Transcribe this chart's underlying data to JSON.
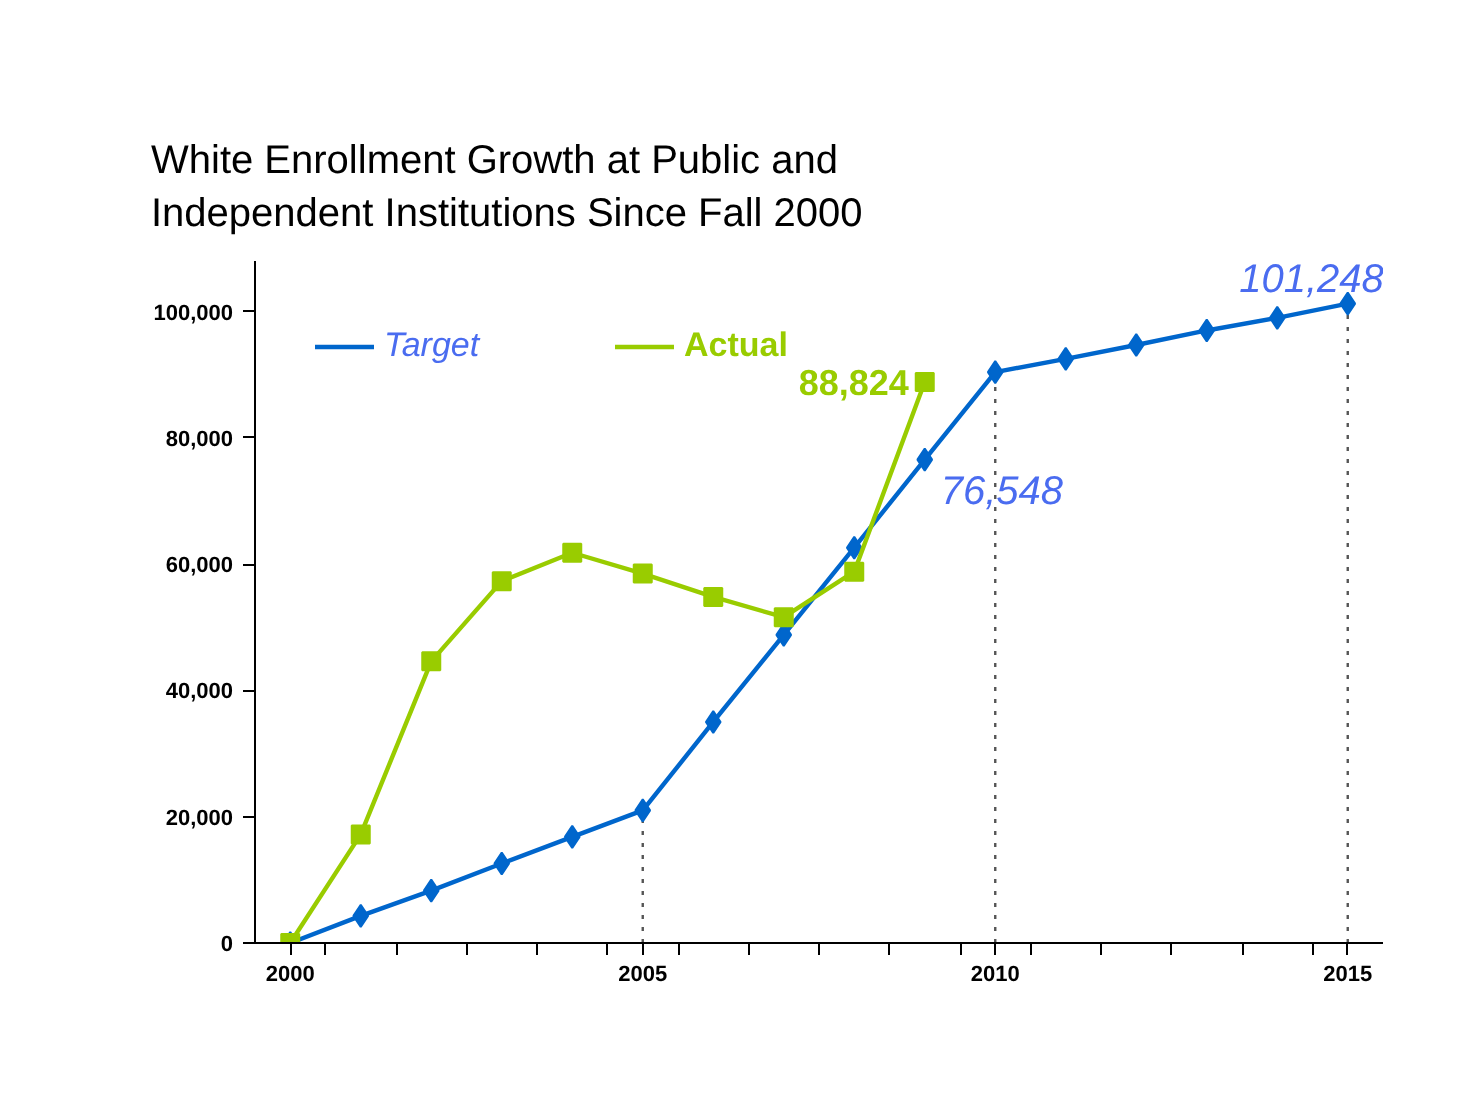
{
  "chart_data": {
    "type": "line",
    "title": "White Enrollment Growth at Public and\nIndependent Institutions Since Fall 2000",
    "x": [
      2000,
      2001,
      2002,
      2003,
      2004,
      2005,
      2006,
      2007,
      2008,
      2009,
      2010,
      2011,
      2012,
      2013,
      2014,
      2015
    ],
    "series": [
      {
        "name": "Target",
        "color": "#0066cc",
        "marker": "diamond",
        "values": [
          0,
          4300,
          8300,
          12600,
          16800,
          21000,
          35000,
          48800,
          62600,
          76548,
          90400,
          92500,
          94700,
          97000,
          99000,
          101248
        ],
        "value_labels": [
          null,
          null,
          null,
          null,
          null,
          null,
          null,
          null,
          null,
          "76,548",
          null,
          null,
          null,
          null,
          null,
          "101,248"
        ]
      },
      {
        "name": "Actual",
        "color": "#99cc00",
        "marker": "square",
        "x": [
          2000,
          2001,
          2002,
          2003,
          2004,
          2005,
          2006,
          2007,
          2008,
          2009
        ],
        "values": [
          0,
          17200,
          44600,
          57300,
          61800,
          58500,
          54800,
          51600,
          58800,
          88824
        ],
        "value_labels": [
          null,
          null,
          null,
          null,
          null,
          null,
          null,
          null,
          null,
          "88,824"
        ]
      }
    ],
    "xlim": [
      1999.5,
      2015.5
    ],
    "xticks": [
      2000,
      2005,
      2010,
      2015,
      {
        "value": 2000.5,
        "label": null
      },
      {
        "value": 2001.5,
        "label": null
      },
      {
        "value": 2002.5,
        "label": null
      },
      {
        "value": 2003.5,
        "label": null
      },
      {
        "value": 2004.5,
        "label": null
      },
      {
        "value": 2005.5,
        "label": null
      },
      {
        "value": 2006.5,
        "label": null
      },
      {
        "value": 2007.5,
        "label": null
      },
      {
        "value": 2008.5,
        "label": null
      },
      {
        "value": 2009.5,
        "label": null
      },
      {
        "value": 2010.5,
        "label": null
      },
      {
        "value": 2011.5,
        "label": null
      },
      {
        "value": 2012.5,
        "label": null
      },
      {
        "value": 2013.5,
        "label": null
      },
      {
        "value": 2014.5,
        "label": null
      }
    ],
    "ylim": [
      0,
      108000
    ],
    "yticks": [
      {
        "value": 0,
        "label": "0"
      },
      {
        "value": 20000,
        "label": "20,000"
      },
      {
        "value": 40000,
        "label": "40,000"
      },
      {
        "value": 60000,
        "label": "60,000"
      },
      {
        "value": 80000,
        "label": "80,000"
      },
      {
        "value": 100000,
        "label": "100,000"
      }
    ],
    "ref_lines": [
      {
        "axis": "x",
        "value": 2005,
        "color": "#555555",
        "line_style": "dotted"
      },
      {
        "axis": "x",
        "value": 2010,
        "color": "#555555",
        "line_style": "dotted"
      },
      {
        "axis": "x",
        "value": 2015,
        "color": "#555555",
        "line_style": "dotted"
      }
    ],
    "grid": false,
    "legend": "top left",
    "line_style": "solid"
  }
}
